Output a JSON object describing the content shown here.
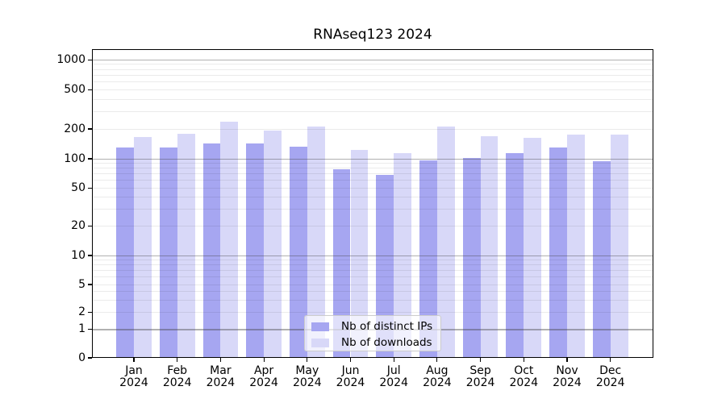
{
  "title": "RNAseq123 2024",
  "chart_data": {
    "type": "bar",
    "title": "RNAseq123 2024",
    "categories": [
      "Jan 2024",
      "Feb 2024",
      "Mar 2024",
      "Apr 2024",
      "May 2024",
      "Jun 2024",
      "Jul 2024",
      "Aug 2024",
      "Sep 2024",
      "Oct 2024",
      "Nov 2024",
      "Dec 2024"
    ],
    "series": [
      {
        "name": "Nb of distinct IPs",
        "color": "#a6a6f1",
        "values": [
          130,
          130,
          142,
          143,
          133,
          78,
          68,
          96,
          101,
          113,
          130,
          95
        ]
      },
      {
        "name": "Nb of downloads",
        "color": "#d8d8f8",
        "values": [
          165,
          180,
          235,
          193,
          210,
          122,
          113,
          210,
          168,
          162,
          176,
          176
        ]
      }
    ],
    "yscale": "symlog",
    "yticks": [
      0,
      1,
      2,
      5,
      10,
      20,
      50,
      100,
      200,
      500,
      1000
    ],
    "ylim": [
      0,
      1300
    ],
    "xlabel": "",
    "ylabel": "",
    "grid": "horizontal major+minor, darker lines at powers of ten, drawn over bars",
    "legend_position": "bottom-center-inside"
  },
  "colors": {
    "bar_distinct_ips": "#a6a6f1",
    "bar_downloads": "#d8d8f8",
    "grid_minor": "rgba(0,0,0,0.08)",
    "grid_decade": "rgba(70,70,70,0.42)",
    "spine": "#000000",
    "legend_bg": "rgba(255,255,255,0.65)",
    "legend_border": "#cccccc"
  }
}
